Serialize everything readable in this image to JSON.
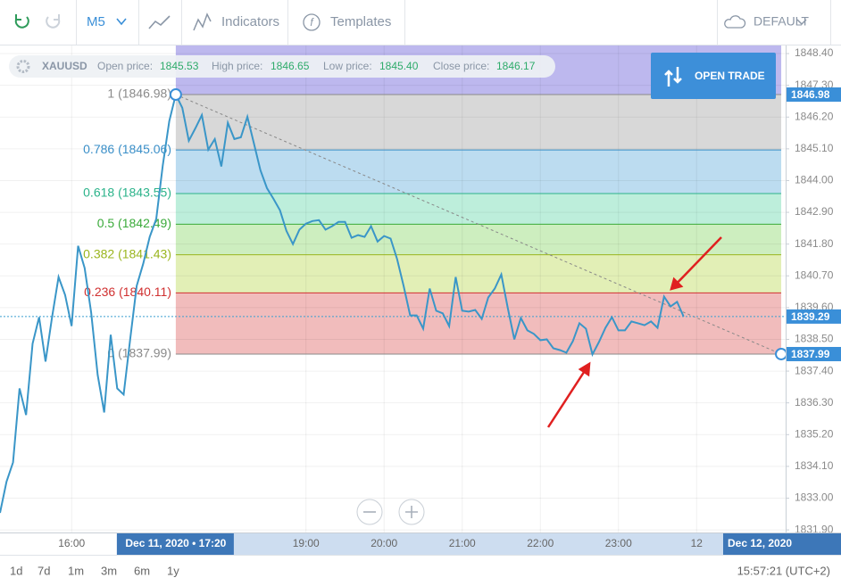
{
  "toolbar": {
    "timeframe": "M5",
    "indicators": "Indicators",
    "templates": "Templates",
    "layout": "DEFAULT"
  },
  "instrument": {
    "symbol": "XAUUSD",
    "fields": [
      {
        "label": "Open price:",
        "value": "1845.53"
      },
      {
        "label": "High price:",
        "value": "1846.65"
      },
      {
        "label": "Low price:",
        "value": "1845.40"
      },
      {
        "label": "Close price:",
        "value": "1846.17"
      }
    ]
  },
  "open_trade": "OPEN TRADE",
  "chart_data": {
    "type": "line",
    "x": [
      905,
      910,
      915,
      920,
      925,
      930,
      935,
      940,
      945,
      950,
      955,
      960,
      965,
      970,
      975,
      980,
      985,
      990,
      995,
      1000,
      1005,
      1010,
      1015,
      1020,
      1025,
      1030,
      1035,
      1040,
      1045,
      1050,
      1055,
      1060,
      1065,
      1070,
      1075,
      1080,
      1085,
      1090,
      1095,
      1100,
      1105,
      1110,
      1115,
      1120,
      1125,
      1130,
      1135,
      1140,
      1145,
      1150,
      1155,
      1160,
      1165,
      1170,
      1175,
      1180,
      1185,
      1190,
      1195,
      1200,
      1205,
      1210,
      1215,
      1220,
      1225,
      1230,
      1235,
      1240,
      1245,
      1250,
      1255,
      1260,
      1265,
      1270,
      1275,
      1280,
      1285,
      1290,
      1295,
      1300,
      1305,
      1310,
      1315,
      1320,
      1325,
      1330,
      1335,
      1340,
      1345,
      1350,
      1355,
      1360,
      1365,
      1370,
      1375,
      1380,
      1385,
      1390,
      1395,
      1400,
      1405,
      1410,
      1415,
      1420,
      1425,
      1430
    ],
    "series": [
      {
        "color": "#3a96c8",
        "values": [
          1832.49,
          1833.57,
          1834.24,
          1836.8,
          1835.88,
          1838.35,
          1839.27,
          1837.73,
          1839.27,
          1840.66,
          1840.04,
          1838.96,
          1841.74,
          1840.97,
          1839.43,
          1837.27,
          1835.97,
          1838.66,
          1836.8,
          1836.59,
          1838.5,
          1840.35,
          1841.12,
          1842.05,
          1842.67,
          1844.52,
          1846.06,
          1846.98,
          1846.52,
          1845.38,
          1845.81,
          1846.27,
          1845.07,
          1845.44,
          1844.49,
          1846.0,
          1845.44,
          1845.5,
          1846.21,
          1845.29,
          1844.36,
          1843.74,
          1843.37,
          1842.97,
          1842.26,
          1841.8,
          1842.3,
          1842.51,
          1842.6,
          1842.63,
          1842.3,
          1842.42,
          1842.57,
          1842.57,
          1842.02,
          1842.11,
          1842.05,
          1842.42,
          1841.89,
          1842.08,
          1841.99,
          1841.28,
          1840.35,
          1839.33,
          1839.33,
          1838.87,
          1840.26,
          1839.49,
          1839.4,
          1838.96,
          1840.66,
          1839.49,
          1839.46,
          1839.52,
          1839.21,
          1839.95,
          1840.26,
          1840.75,
          1839.58,
          1838.5,
          1839.24,
          1838.81,
          1838.69,
          1838.47,
          1838.5,
          1838.19,
          1838.13,
          1838.04,
          1838.44,
          1839.06,
          1838.87,
          1837.98,
          1838.41,
          1838.9,
          1839.27,
          1838.81,
          1838.81,
          1839.12,
          1839.06,
          1838.99,
          1839.12,
          1838.9,
          1839.98,
          1839.64,
          1839.8,
          1839.29
        ]
      }
    ],
    "xlim": [
      905,
      1508.4
    ],
    "xticks": [
      {
        "value": 960,
        "label": "16:00"
      },
      {
        "value": 1140,
        "label": "19:00"
      },
      {
        "value": 1200,
        "label": "20:00"
      },
      {
        "value": 1260,
        "label": "21:00"
      },
      {
        "value": 1320,
        "label": "22:00"
      },
      {
        "value": 1380,
        "label": "23:00"
      },
      {
        "value": 1440,
        "label": "12"
      }
    ],
    "ylim": [
      1831.81,
      1848.68
    ],
    "yticks": [
      {
        "value": 1848.4,
        "label": "1848.40"
      },
      {
        "value": 1847.3,
        "label": "1847.30"
      },
      {
        "value": 1846.2,
        "label": "1846.20"
      },
      {
        "value": 1845.1,
        "label": "1845.10"
      },
      {
        "value": 1844,
        "label": "1844.00"
      },
      {
        "value": 1842.9,
        "label": "1842.90"
      },
      {
        "value": 1841.8,
        "label": "1841.80"
      },
      {
        "value": 1840.7,
        "label": "1840.70"
      },
      {
        "value": 1839.6,
        "label": "1839.60"
      },
      {
        "value": 1838.5,
        "label": "1838.50"
      },
      {
        "value": 1837.4,
        "label": "1837.40"
      },
      {
        "value": 1836.3,
        "label": "1836.30"
      },
      {
        "value": 1835.2,
        "label": "1835.20"
      },
      {
        "value": 1834.1,
        "label": "1834.10"
      },
      {
        "value": 1833,
        "label": "1833.00"
      },
      {
        "value": 1831.9,
        "label": "1831.90"
      }
    ],
    "grid": true,
    "last_price": 1839.29,
    "fibonacci": {
      "x_start": 1040,
      "x_end": 1505,
      "top_color": "#bdb8ee",
      "levels": [
        {
          "label": "1 (1846.98)",
          "value": 1846.98,
          "color": "#8a8a8a",
          "band": "#d8d8d8"
        },
        {
          "label": "0.786 (1845.06)",
          "value": 1845.06,
          "color": "#3a8fc8",
          "band": "#bcdcf0"
        },
        {
          "label": "0.618 (1843.55)",
          "value": 1843.55,
          "color": "#2bb38a",
          "band": "#bdeedb"
        },
        {
          "label": "0.5 (1842.49)",
          "value": 1842.49,
          "color": "#3aaa3a",
          "band": "#cdeebf"
        },
        {
          "label": "0.382 (1841.43)",
          "value": 1841.43,
          "color": "#9ab51e",
          "band": "#e2efb6"
        },
        {
          "label": "0.236 (1840.11)",
          "value": 1840.11,
          "color": "#d03030",
          "band": "#f1bcbc"
        },
        {
          "label": "0 (1837.99)",
          "value": 1837.99,
          "color": "#8a8a8a",
          "band": null
        }
      ]
    },
    "crosshair_time": {
      "value": 1040,
      "label": "Dec 11, 2020 • 17:20"
    },
    "date_marker": "Dec 12, 2020"
  },
  "ranges": [
    "1d",
    "7d",
    "1m",
    "3m",
    "6m",
    "1y"
  ],
  "clock": "15:57:21 (UTC+2)"
}
